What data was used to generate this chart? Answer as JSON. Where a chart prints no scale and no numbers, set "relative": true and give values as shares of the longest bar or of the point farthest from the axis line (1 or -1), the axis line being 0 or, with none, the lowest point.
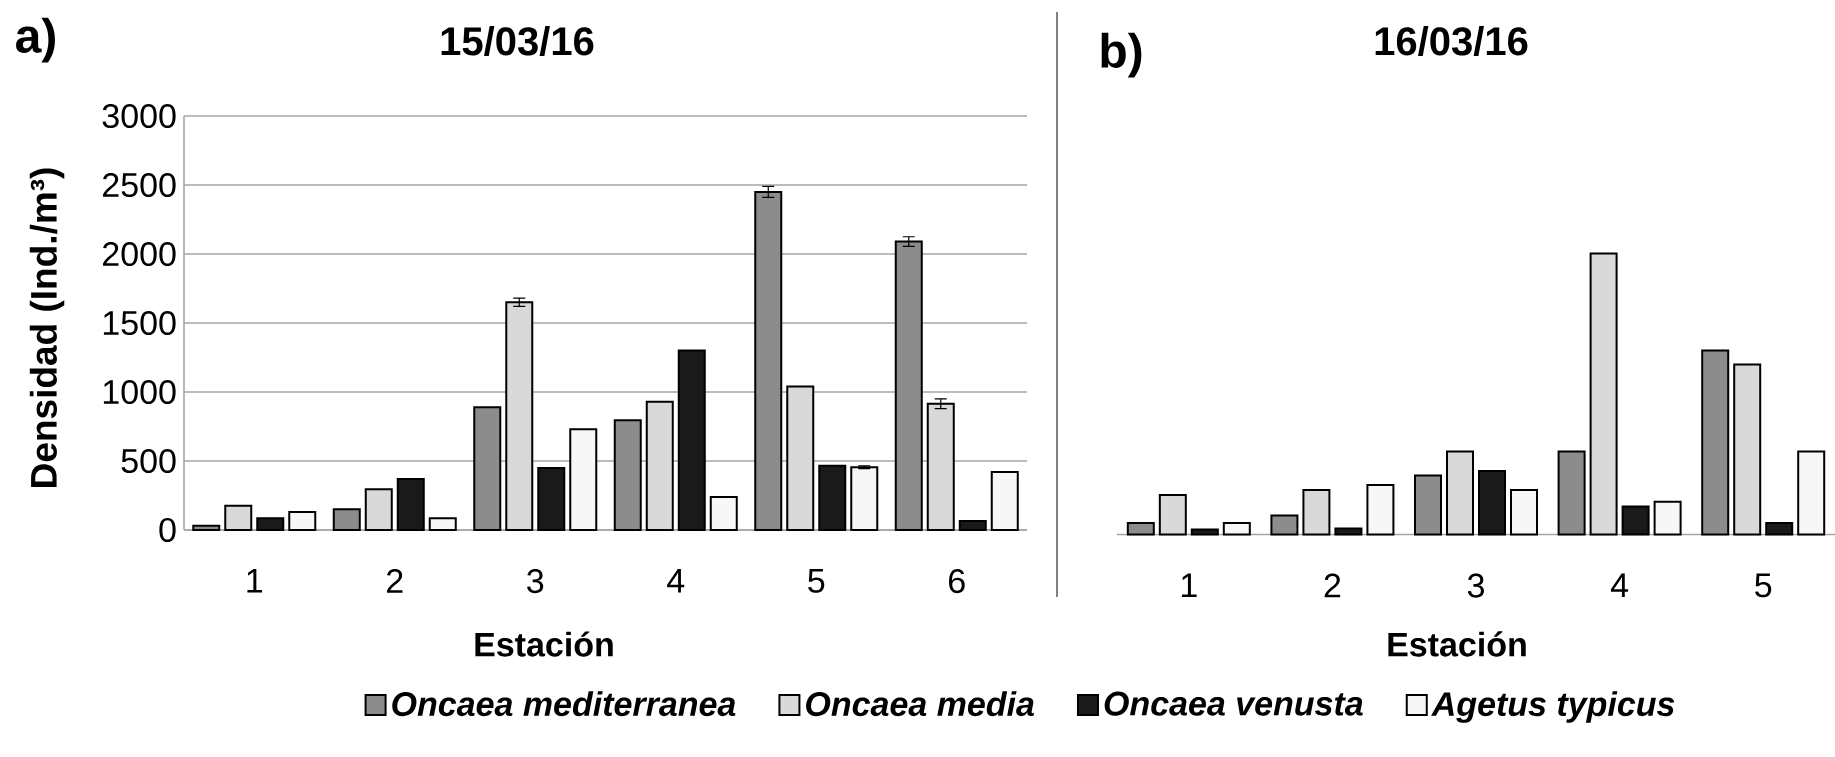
{
  "chart_data": [
    {
      "type": "bar",
      "title": "15/03/16",
      "xlabel": "Estación",
      "ylabel": "Densidad (Ind./m³)",
      "annotations": [
        "a)"
      ],
      "categories": [
        "1",
        "2",
        "3",
        "4",
        "5",
        "6"
      ],
      "series": [
        {
          "name": "Oncaea mediterranea",
          "color": "#8c8c8c",
          "values": [
            30,
            150,
            890,
            795,
            2450,
            2090
          ],
          "errors": [
            null,
            null,
            null,
            null,
            40,
            35
          ]
        },
        {
          "name": "Oncaea media",
          "color": "#d9d9d9",
          "values": [
            175,
            295,
            1650,
            930,
            1040,
            915
          ],
          "errors": [
            null,
            null,
            30,
            null,
            null,
            35
          ]
        },
        {
          "name": "Oncaea venusta",
          "color": "#1a1a1a",
          "values": [
            85,
            370,
            450,
            1300,
            465,
            65
          ]
        },
        {
          "name": "Agetus typicus",
          "color": "#f7f7f7",
          "values": [
            130,
            85,
            730,
            240,
            455,
            420
          ],
          "errors": [
            null,
            null,
            null,
            null,
            10,
            null
          ]
        }
      ],
      "ylim": [
        0,
        3000
      ],
      "yticks": [
        0,
        500,
        1000,
        1500,
        2000,
        2500,
        3000
      ],
      "grid": "y",
      "legend": "bottom"
    },
    {
      "type": "bar",
      "title": "16/03/16",
      "xlabel": "Estación",
      "annotations": [
        "b)"
      ],
      "categories": [
        "1",
        "2",
        "3",
        "4",
        "5"
      ],
      "relative": true,
      "series": [
        {
          "color": "#8c8c8c",
          "values": [
            0.041,
            0.068,
            0.21,
            0.295,
            0.655
          ]
        },
        {
          "color": "#d9d9d9",
          "values": [
            0.141,
            0.158,
            0.295,
            1,
            0.605
          ]
        },
        {
          "color": "#1a1a1a",
          "values": [
            0.018,
            0.021,
            0.226,
            0.1,
            0.041
          ]
        },
        {
          "color": "#f7f7f7",
          "values": [
            0.041,
            0.176,
            0.158,
            0.117,
            0.295
          ]
        }
      ]
    }
  ]
}
